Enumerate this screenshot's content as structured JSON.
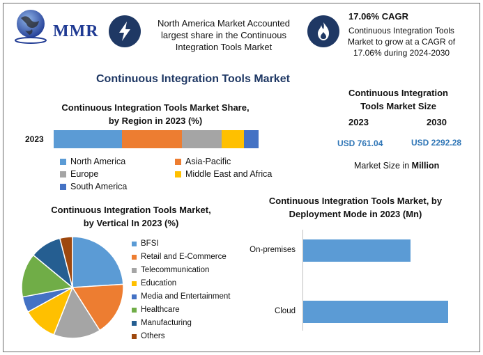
{
  "header": {
    "logo_text": "MMR",
    "na_text": "North America Market Accounted largest share in the Continuous Integration Tools Market",
    "cagr_title": "17.06% CAGR",
    "cagr_text": "Continuous Integration Tools Market to grow at a CAGR of 17.06% during 2024-2030",
    "icons": [
      "lightning-icon",
      "flame-icon",
      "globe-icon"
    ]
  },
  "main_title": "Continuous Integration Tools Market",
  "colors": {
    "navy": "#1f3864",
    "blue": "#5b9bd5",
    "orange": "#ed7d31",
    "gray": "#a5a5a5",
    "yellow": "#ffc000",
    "mid_blue": "#4472c4",
    "green": "#70ad47",
    "dark_blue": "#255e91",
    "brown": "#9e480e"
  },
  "size_panel": {
    "title_line1": "Continuous Integration",
    "title_line2": "Tools Market Size",
    "year1": "2023",
    "year2": "2030",
    "value1": "USD 761.04",
    "value2": "USD 2292.28",
    "unit_prefix": "Market Size in ",
    "unit_bold": "Million"
  },
  "region_chart": {
    "title_line1": "Continuous Integration Tools Market Share,",
    "title_line2": "by Region in 2023 (%)"
  },
  "vertical_chart": {
    "title_line1": "Continuous Integration Tools Market,",
    "title_line2": "by Vertical In 2023 (%)"
  },
  "deploy_chart": {
    "title_line1": "Continuous Integration Tools Market, by",
    "title_line2": "Deployment Mode in 2023 (Mn)"
  },
  "chart_data": [
    {
      "type": "bar",
      "orientation": "horizontal-stacked",
      "title": "Continuous Integration Tools Market Share, by Region in 2023 (%)",
      "categories": [
        "2023"
      ],
      "series": [
        {
          "name": "North America",
          "values": [
            33
          ],
          "color": "#5b9bd5"
        },
        {
          "name": "Asia-Pacific",
          "values": [
            29
          ],
          "color": "#ed7d31"
        },
        {
          "name": "Europe",
          "values": [
            19
          ],
          "color": "#a5a5a5"
        },
        {
          "name": "Middle East and Africa",
          "values": [
            11
          ],
          "color": "#ffc000"
        },
        {
          "name": "South America",
          "values": [
            7
          ],
          "color": "#4472c4"
        }
      ],
      "legend": "bottom"
    },
    {
      "type": "pie",
      "title": "Continuous Integration Tools Market, by Vertical In 2023 (%)",
      "slices": [
        {
          "name": "BFSI",
          "value": 24,
          "color": "#5b9bd5"
        },
        {
          "name": "Retail and E-Commerce",
          "value": 17,
          "color": "#ed7d31"
        },
        {
          "name": "Telecommunication",
          "value": 15,
          "color": "#a5a5a5"
        },
        {
          "name": "Education",
          "value": 11,
          "color": "#ffc000"
        },
        {
          "name": "Media and Entertainment",
          "value": 5,
          "color": "#4472c4"
        },
        {
          "name": "Healthcare",
          "value": 14,
          "color": "#70ad47"
        },
        {
          "name": "Manufacturing",
          "value": 10,
          "color": "#255e91"
        },
        {
          "name": "Others",
          "value": 4,
          "color": "#9e480e"
        }
      ],
      "legend": "right"
    },
    {
      "type": "bar",
      "orientation": "horizontal",
      "title": "Continuous Integration Tools Market, by Deployment Mode in 2023 (Mn)",
      "categories": [
        "On-premises",
        "Cloud"
      ],
      "values": [
        330,
        445
      ],
      "xlim": [
        0,
        460
      ],
      "color": "#5b9bd5"
    }
  ]
}
